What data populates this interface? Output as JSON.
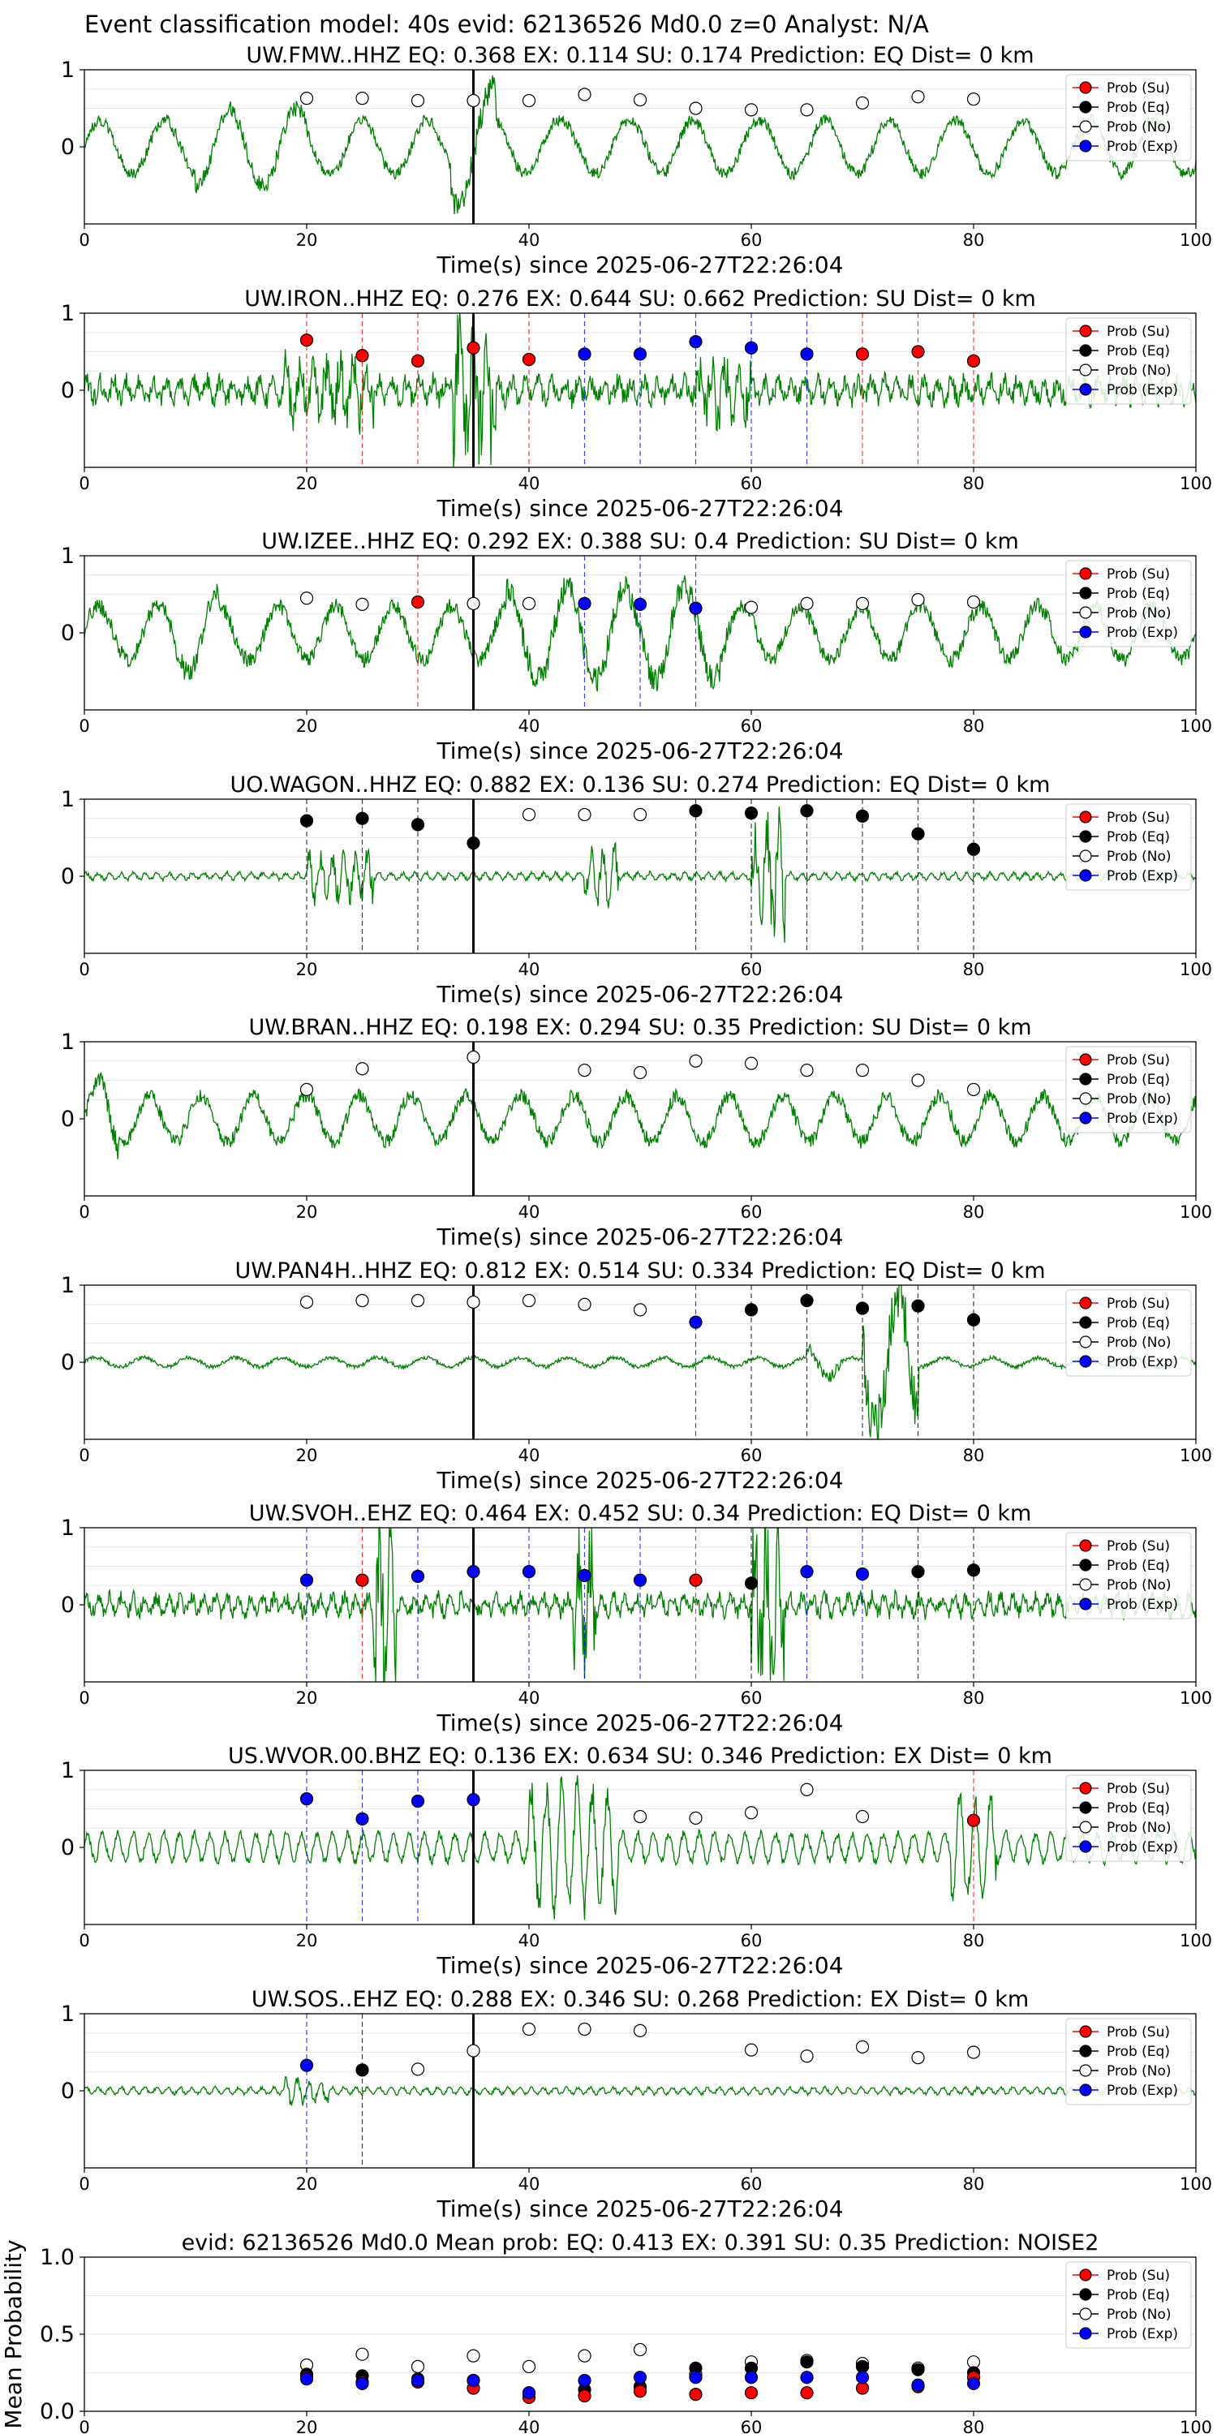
{
  "figure_title": "Event classification model: 40s evid: 62136526 Md0.0 z=0 Analyst: N/A",
  "colors": {
    "waveform": "#008000",
    "su": "#ff0000",
    "eq": "#000000",
    "no": "#ffffff",
    "exp": "#0000ff",
    "arrival_line": "#000000"
  },
  "legend_labels": [
    "Prob (Su)",
    "Prob (Eq)",
    "Prob (No)",
    "Prob (Exp)"
  ],
  "chart_data": [
    {
      "type": "scatter",
      "title": "UW.FMW..HHZ   EQ: 0.368  EX: 0.114  SU: 0.174   Prediction: EQ    Dist= 0 km",
      "xlabel": "Time(s) since 2025-06-27T22:26:04",
      "xlim": [
        0,
        100
      ],
      "ylim": [
        -1,
        1
      ],
      "xticks": [
        "0",
        "20",
        "40",
        "60",
        "80",
        "100"
      ],
      "yticks": [
        "1",
        "0"
      ],
      "arrival_x": 35,
      "legend": "top-right",
      "grid": true,
      "points": [
        {
          "x": 20,
          "y": 0.63,
          "cls": "no"
        },
        {
          "x": 25,
          "y": 0.63,
          "cls": "no"
        },
        {
          "x": 30,
          "y": 0.6,
          "cls": "no"
        },
        {
          "x": 35,
          "y": 0.6,
          "cls": "no"
        },
        {
          "x": 40,
          "y": 0.6,
          "cls": "no"
        },
        {
          "x": 45,
          "y": 0.68,
          "cls": "no"
        },
        {
          "x": 50,
          "y": 0.61,
          "cls": "no"
        },
        {
          "x": 55,
          "y": 0.5,
          "cls": "no"
        },
        {
          "x": 60,
          "y": 0.48,
          "cls": "no"
        },
        {
          "x": 65,
          "y": 0.48,
          "cls": "no"
        },
        {
          "x": 70,
          "y": 0.57,
          "cls": "no"
        },
        {
          "x": 75,
          "y": 0.65,
          "cls": "no"
        },
        {
          "x": 80,
          "y": 0.62,
          "cls": "no"
        }
      ]
    },
    {
      "type": "scatter",
      "title": "UW.IRON..HHZ   EQ: 0.276  EX: 0.644  SU: 0.662   Prediction: SU    Dist= 0 km",
      "xlabel": "Time(s) since 2025-06-27T22:26:04",
      "xlim": [
        0,
        100
      ],
      "ylim": [
        -1,
        1
      ],
      "xticks": [
        "0",
        "20",
        "40",
        "60",
        "80",
        "100"
      ],
      "yticks": [
        "1",
        "0"
      ],
      "arrival_x": 35,
      "legend": "top-right",
      "grid": true,
      "points": [
        {
          "x": 20,
          "y": 0.65,
          "cls": "su"
        },
        {
          "x": 25,
          "y": 0.45,
          "cls": "su"
        },
        {
          "x": 30,
          "y": 0.38,
          "cls": "su"
        },
        {
          "x": 35,
          "y": 0.55,
          "cls": "su"
        },
        {
          "x": 40,
          "y": 0.4,
          "cls": "su"
        },
        {
          "x": 45,
          "y": 0.47,
          "cls": "exp"
        },
        {
          "x": 50,
          "y": 0.47,
          "cls": "exp"
        },
        {
          "x": 55,
          "y": 0.63,
          "cls": "exp"
        },
        {
          "x": 60,
          "y": 0.55,
          "cls": "exp"
        },
        {
          "x": 65,
          "y": 0.47,
          "cls": "exp"
        },
        {
          "x": 70,
          "y": 0.47,
          "cls": "su"
        },
        {
          "x": 75,
          "y": 0.5,
          "cls": "su"
        },
        {
          "x": 80,
          "y": 0.38,
          "cls": "su"
        }
      ]
    },
    {
      "type": "scatter",
      "title": "UW.IZEE..HHZ   EQ: 0.292  EX: 0.388  SU: 0.4   Prediction: SU    Dist= 0 km",
      "xlabel": "Time(s) since 2025-06-27T22:26:04",
      "xlim": [
        0,
        100
      ],
      "ylim": [
        -1,
        1
      ],
      "xticks": [
        "0",
        "20",
        "40",
        "60",
        "80",
        "100"
      ],
      "yticks": [
        "1",
        "0"
      ],
      "arrival_x": 35,
      "legend": "top-right",
      "grid": true,
      "points": [
        {
          "x": 20,
          "y": 0.45,
          "cls": "no"
        },
        {
          "x": 25,
          "y": 0.37,
          "cls": "no"
        },
        {
          "x": 30,
          "y": 0.4,
          "cls": "su"
        },
        {
          "x": 35,
          "y": 0.38,
          "cls": "no"
        },
        {
          "x": 40,
          "y": 0.38,
          "cls": "no"
        },
        {
          "x": 45,
          "y": 0.38,
          "cls": "exp"
        },
        {
          "x": 50,
          "y": 0.37,
          "cls": "exp"
        },
        {
          "x": 55,
          "y": 0.32,
          "cls": "exp"
        },
        {
          "x": 60,
          "y": 0.33,
          "cls": "no"
        },
        {
          "x": 65,
          "y": 0.38,
          "cls": "no"
        },
        {
          "x": 70,
          "y": 0.38,
          "cls": "no"
        },
        {
          "x": 75,
          "y": 0.43,
          "cls": "no"
        },
        {
          "x": 80,
          "y": 0.4,
          "cls": "no"
        }
      ]
    },
    {
      "type": "scatter",
      "title": "UO.WAGON..HHZ   EQ: 0.882  EX: 0.136  SU: 0.274   Prediction: EQ    Dist= 0 km",
      "xlabel": "Time(s) since 2025-06-27T22:26:04",
      "xlim": [
        0,
        100
      ],
      "ylim": [
        -1,
        1
      ],
      "xticks": [
        "0",
        "20",
        "40",
        "60",
        "80",
        "100"
      ],
      "yticks": [
        "1",
        "0"
      ],
      "arrival_x": 35,
      "legend": "top-right",
      "grid": true,
      "points": [
        {
          "x": 20,
          "y": 0.72,
          "cls": "eq"
        },
        {
          "x": 25,
          "y": 0.75,
          "cls": "eq"
        },
        {
          "x": 30,
          "y": 0.67,
          "cls": "eq"
        },
        {
          "x": 35,
          "y": 0.43,
          "cls": "eq"
        },
        {
          "x": 40,
          "y": 0.8,
          "cls": "no"
        },
        {
          "x": 45,
          "y": 0.8,
          "cls": "no"
        },
        {
          "x": 50,
          "y": 0.8,
          "cls": "no"
        },
        {
          "x": 55,
          "y": 0.85,
          "cls": "eq"
        },
        {
          "x": 60,
          "y": 0.82,
          "cls": "eq"
        },
        {
          "x": 65,
          "y": 0.85,
          "cls": "eq"
        },
        {
          "x": 70,
          "y": 0.78,
          "cls": "eq"
        },
        {
          "x": 75,
          "y": 0.55,
          "cls": "eq"
        },
        {
          "x": 80,
          "y": 0.35,
          "cls": "eq"
        }
      ]
    },
    {
      "type": "scatter",
      "title": "UW.BRAN..HHZ   EQ: 0.198  EX: 0.294  SU: 0.35   Prediction: SU    Dist= 0 km",
      "xlabel": "Time(s) since 2025-06-27T22:26:04",
      "xlim": [
        0,
        100
      ],
      "ylim": [
        -1,
        1
      ],
      "xticks": [
        "0",
        "20",
        "40",
        "60",
        "80",
        "100"
      ],
      "yticks": [
        "1",
        "0"
      ],
      "arrival_x": 35,
      "legend": "top-right",
      "grid": true,
      "points": [
        {
          "x": 20,
          "y": 0.38,
          "cls": "no"
        },
        {
          "x": 25,
          "y": 0.65,
          "cls": "no"
        },
        {
          "x": 35,
          "y": 0.8,
          "cls": "no"
        },
        {
          "x": 45,
          "y": 0.63,
          "cls": "no"
        },
        {
          "x": 50,
          "y": 0.6,
          "cls": "no"
        },
        {
          "x": 55,
          "y": 0.75,
          "cls": "no"
        },
        {
          "x": 60,
          "y": 0.72,
          "cls": "no"
        },
        {
          "x": 65,
          "y": 0.63,
          "cls": "no"
        },
        {
          "x": 70,
          "y": 0.63,
          "cls": "no"
        },
        {
          "x": 75,
          "y": 0.5,
          "cls": "no"
        },
        {
          "x": 80,
          "y": 0.38,
          "cls": "no"
        }
      ]
    },
    {
      "type": "scatter",
      "title": "UW.PAN4H..HHZ   EQ: 0.812  EX: 0.514  SU: 0.334   Prediction: EQ    Dist= 0 km",
      "xlabel": "Time(s) since 2025-06-27T22:26:04",
      "xlim": [
        0,
        100
      ],
      "ylim": [
        -1,
        1
      ],
      "xticks": [
        "0",
        "20",
        "40",
        "60",
        "80",
        "100"
      ],
      "yticks": [
        "1",
        "0"
      ],
      "arrival_x": 35,
      "legend": "top-right",
      "grid": true,
      "points": [
        {
          "x": 20,
          "y": 0.78,
          "cls": "no"
        },
        {
          "x": 25,
          "y": 0.8,
          "cls": "no"
        },
        {
          "x": 30,
          "y": 0.8,
          "cls": "no"
        },
        {
          "x": 35,
          "y": 0.78,
          "cls": "no"
        },
        {
          "x": 40,
          "y": 0.8,
          "cls": "no"
        },
        {
          "x": 45,
          "y": 0.75,
          "cls": "no"
        },
        {
          "x": 50,
          "y": 0.68,
          "cls": "no"
        },
        {
          "x": 55,
          "y": 0.52,
          "cls": "exp"
        },
        {
          "x": 60,
          "y": 0.68,
          "cls": "eq"
        },
        {
          "x": 65,
          "y": 0.8,
          "cls": "eq"
        },
        {
          "x": 70,
          "y": 0.7,
          "cls": "eq"
        },
        {
          "x": 75,
          "y": 0.73,
          "cls": "eq"
        },
        {
          "x": 80,
          "y": 0.55,
          "cls": "eq"
        }
      ]
    },
    {
      "type": "scatter",
      "title": "UW.SVOH..EHZ   EQ: 0.464  EX: 0.452  SU: 0.34   Prediction: EQ    Dist= 0 km",
      "xlabel": "Time(s) since 2025-06-27T22:26:04",
      "xlim": [
        0,
        100
      ],
      "ylim": [
        -1,
        1
      ],
      "xticks": [
        "0",
        "20",
        "40",
        "60",
        "80",
        "100"
      ],
      "yticks": [
        "1",
        "0"
      ],
      "arrival_x": 35,
      "legend": "top-right",
      "grid": true,
      "points": [
        {
          "x": 20,
          "y": 0.32,
          "cls": "exp"
        },
        {
          "x": 25,
          "y": 0.32,
          "cls": "su"
        },
        {
          "x": 30,
          "y": 0.37,
          "cls": "exp"
        },
        {
          "x": 35,
          "y": 0.43,
          "cls": "exp"
        },
        {
          "x": 40,
          "y": 0.43,
          "cls": "exp"
        },
        {
          "x": 45,
          "y": 0.38,
          "cls": "exp"
        },
        {
          "x": 50,
          "y": 0.32,
          "cls": "exp"
        },
        {
          "x": 55,
          "y": 0.32,
          "cls": "su"
        },
        {
          "x": 60,
          "y": 0.28,
          "cls": "eq"
        },
        {
          "x": 65,
          "y": 0.43,
          "cls": "exp"
        },
        {
          "x": 70,
          "y": 0.4,
          "cls": "exp"
        },
        {
          "x": 75,
          "y": 0.43,
          "cls": "eq"
        },
        {
          "x": 80,
          "y": 0.45,
          "cls": "eq"
        }
      ]
    },
    {
      "type": "scatter",
      "title": "US.WVOR.00.BHZ   EQ: 0.136  EX: 0.634  SU: 0.346   Prediction: EX    Dist= 0 km",
      "xlabel": "Time(s) since 2025-06-27T22:26:04",
      "xlim": [
        0,
        100
      ],
      "ylim": [
        -1,
        1
      ],
      "xticks": [
        "0",
        "20",
        "40",
        "60",
        "80",
        "100"
      ],
      "yticks": [
        "1",
        "0"
      ],
      "arrival_x": 35,
      "legend": "top-right",
      "grid": true,
      "points": [
        {
          "x": 20,
          "y": 0.63,
          "cls": "exp"
        },
        {
          "x": 25,
          "y": 0.37,
          "cls": "exp"
        },
        {
          "x": 30,
          "y": 0.6,
          "cls": "exp"
        },
        {
          "x": 35,
          "y": 0.62,
          "cls": "exp"
        },
        {
          "x": 50,
          "y": 0.4,
          "cls": "no"
        },
        {
          "x": 55,
          "y": 0.38,
          "cls": "no"
        },
        {
          "x": 60,
          "y": 0.45,
          "cls": "no"
        },
        {
          "x": 65,
          "y": 0.75,
          "cls": "no"
        },
        {
          "x": 70,
          "y": 0.4,
          "cls": "no"
        },
        {
          "x": 80,
          "y": 0.35,
          "cls": "su"
        }
      ]
    },
    {
      "type": "scatter",
      "title": "UW.SOS..EHZ   EQ: 0.288  EX: 0.346  SU: 0.268   Prediction: EX    Dist= 0 km",
      "xlabel": "Time(s) since 2025-06-27T22:26:04",
      "xlim": [
        0,
        100
      ],
      "ylim": [
        -1,
        1
      ],
      "xticks": [
        "0",
        "20",
        "40",
        "60",
        "80",
        "100"
      ],
      "yticks": [
        "1",
        "0"
      ],
      "arrival_x": 35,
      "legend": "top-right",
      "grid": true,
      "points": [
        {
          "x": 20,
          "y": 0.33,
          "cls": "exp"
        },
        {
          "x": 25,
          "y": 0.27,
          "cls": "eq"
        },
        {
          "x": 30,
          "y": 0.28,
          "cls": "no"
        },
        {
          "x": 35,
          "y": 0.52,
          "cls": "no"
        },
        {
          "x": 40,
          "y": 0.8,
          "cls": "no"
        },
        {
          "x": 45,
          "y": 0.8,
          "cls": "no"
        },
        {
          "x": 50,
          "y": 0.78,
          "cls": "no"
        },
        {
          "x": 60,
          "y": 0.53,
          "cls": "no"
        },
        {
          "x": 65,
          "y": 0.45,
          "cls": "no"
        },
        {
          "x": 70,
          "y": 0.57,
          "cls": "no"
        },
        {
          "x": 75,
          "y": 0.43,
          "cls": "no"
        },
        {
          "x": 80,
          "y": 0.5,
          "cls": "no"
        }
      ]
    },
    {
      "type": "scatter",
      "title": "evid: 62136526  Md0.0   Mean prob:   EQ: 0.413  EX: 0.391  SU: 0.35   Prediction: NOISE2",
      "ylabel": "Mean Probability",
      "xlim": [
        0,
        100
      ],
      "ylim": [
        0,
        1
      ],
      "xticks": [
        "0",
        "20",
        "40",
        "60",
        "80",
        "100"
      ],
      "yticks": [
        "1.0",
        "0.5",
        "0.0"
      ],
      "legend": "top-right",
      "grid": true,
      "points": [
        {
          "x": 20,
          "y": 0.3,
          "cls": "no"
        },
        {
          "x": 20,
          "y": 0.24,
          "cls": "eq"
        },
        {
          "x": 20,
          "y": 0.22,
          "cls": "su"
        },
        {
          "x": 20,
          "y": 0.21,
          "cls": "exp"
        },
        {
          "x": 25,
          "y": 0.37,
          "cls": "no"
        },
        {
          "x": 25,
          "y": 0.23,
          "cls": "eq"
        },
        {
          "x": 25,
          "y": 0.19,
          "cls": "su"
        },
        {
          "x": 25,
          "y": 0.18,
          "cls": "exp"
        },
        {
          "x": 30,
          "y": 0.29,
          "cls": "no"
        },
        {
          "x": 30,
          "y": 0.21,
          "cls": "eq"
        },
        {
          "x": 30,
          "y": 0.19,
          "cls": "su"
        },
        {
          "x": 30,
          "y": 0.2,
          "cls": "exp"
        },
        {
          "x": 35,
          "y": 0.36,
          "cls": "no"
        },
        {
          "x": 35,
          "y": 0.2,
          "cls": "eq"
        },
        {
          "x": 35,
          "y": 0.15,
          "cls": "su"
        },
        {
          "x": 35,
          "y": 0.2,
          "cls": "exp"
        },
        {
          "x": 40,
          "y": 0.29,
          "cls": "no"
        },
        {
          "x": 40,
          "y": 0.12,
          "cls": "eq"
        },
        {
          "x": 40,
          "y": 0.09,
          "cls": "su"
        },
        {
          "x": 40,
          "y": 0.12,
          "cls": "exp"
        },
        {
          "x": 45,
          "y": 0.36,
          "cls": "no"
        },
        {
          "x": 45,
          "y": 0.14,
          "cls": "eq"
        },
        {
          "x": 45,
          "y": 0.1,
          "cls": "su"
        },
        {
          "x": 45,
          "y": 0.2,
          "cls": "exp"
        },
        {
          "x": 50,
          "y": 0.4,
          "cls": "no"
        },
        {
          "x": 50,
          "y": 0.16,
          "cls": "eq"
        },
        {
          "x": 50,
          "y": 0.13,
          "cls": "su"
        },
        {
          "x": 50,
          "y": 0.22,
          "cls": "exp"
        },
        {
          "x": 55,
          "y": 0.24,
          "cls": "no"
        },
        {
          "x": 55,
          "y": 0.28,
          "cls": "eq"
        },
        {
          "x": 55,
          "y": 0.11,
          "cls": "su"
        },
        {
          "x": 55,
          "y": 0.22,
          "cls": "exp"
        },
        {
          "x": 60,
          "y": 0.32,
          "cls": "no"
        },
        {
          "x": 60,
          "y": 0.28,
          "cls": "eq"
        },
        {
          "x": 60,
          "y": 0.12,
          "cls": "su"
        },
        {
          "x": 60,
          "y": 0.22,
          "cls": "exp"
        },
        {
          "x": 65,
          "y": 0.33,
          "cls": "no"
        },
        {
          "x": 65,
          "y": 0.32,
          "cls": "eq"
        },
        {
          "x": 65,
          "y": 0.12,
          "cls": "su"
        },
        {
          "x": 65,
          "y": 0.22,
          "cls": "exp"
        },
        {
          "x": 70,
          "y": 0.31,
          "cls": "no"
        },
        {
          "x": 70,
          "y": 0.29,
          "cls": "eq"
        },
        {
          "x": 70,
          "y": 0.15,
          "cls": "su"
        },
        {
          "x": 70,
          "y": 0.22,
          "cls": "exp"
        },
        {
          "x": 75,
          "y": 0.28,
          "cls": "no"
        },
        {
          "x": 75,
          "y": 0.27,
          "cls": "eq"
        },
        {
          "x": 75,
          "y": 0.16,
          "cls": "su"
        },
        {
          "x": 75,
          "y": 0.17,
          "cls": "exp"
        },
        {
          "x": 80,
          "y": 0.32,
          "cls": "no"
        },
        {
          "x": 80,
          "y": 0.25,
          "cls": "eq"
        },
        {
          "x": 80,
          "y": 0.22,
          "cls": "su"
        },
        {
          "x": 80,
          "y": 0.18,
          "cls": "exp"
        }
      ]
    }
  ]
}
